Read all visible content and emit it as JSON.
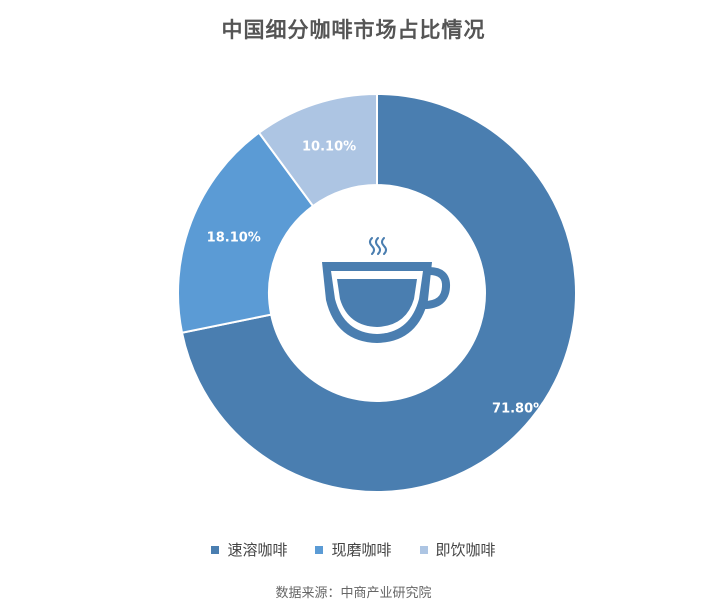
{
  "chart_data": {
    "type": "pie",
    "title": "中国细分咖啡市场占比情况",
    "categories": [
      "速溶咖啡",
      "现磨咖啡",
      "即饮咖啡"
    ],
    "values": [
      71.8,
      18.1,
      10.1
    ],
    "data_labels": [
      "71.80%",
      "18.10%",
      "10.10%"
    ],
    "colors": [
      "#4a7eb0",
      "#5b9bd5",
      "#adc5e3"
    ],
    "donut": true,
    "legend_position": "bottom",
    "center_icon": "coffee-cup-icon"
  },
  "source": "数据来源：中商产业研究院"
}
